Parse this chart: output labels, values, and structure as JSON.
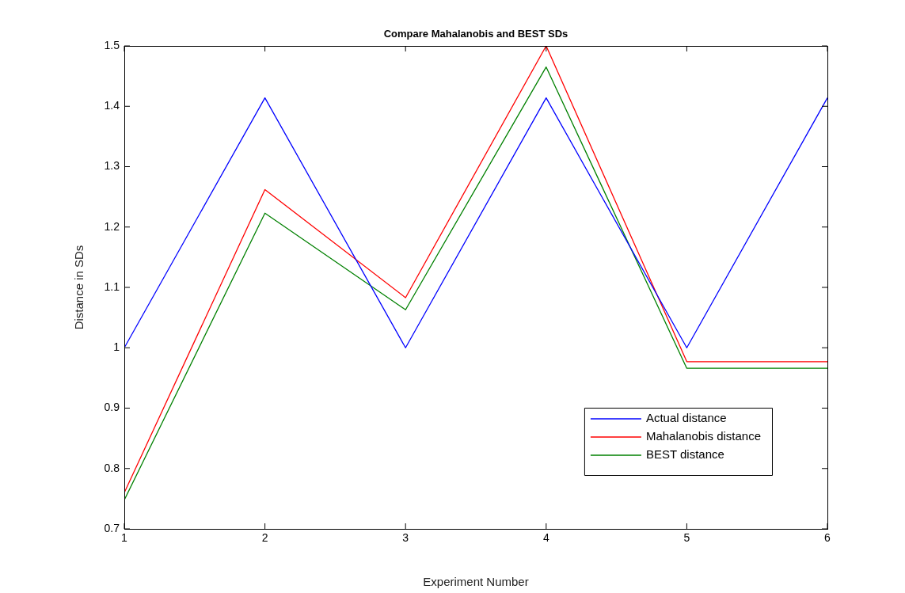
{
  "chart_data": {
    "type": "line",
    "title": "Compare Mahalanobis and BEST SDs",
    "xlabel": "Experiment Number",
    "ylabel": "Distance in SDs",
    "x": [
      1,
      2,
      3,
      4,
      5,
      6
    ],
    "series": [
      {
        "name": "Actual distance",
        "color": "#0000ff",
        "values": [
          1,
          1.414,
          1,
          1.414,
          1,
          1.414
        ]
      },
      {
        "name": "Mahalanobis distance",
        "color": "#ff0000",
        "values": [
          0.76,
          1.262,
          1.083,
          1.5,
          0.977,
          0.977
        ]
      },
      {
        "name": "BEST distance",
        "color": "#008000",
        "values": [
          0.748,
          1.223,
          1.063,
          1.465,
          0.966,
          0.966
        ]
      }
    ],
    "xlim": [
      1,
      6
    ],
    "xticks": [
      1,
      2,
      3,
      4,
      5,
      6
    ],
    "ylim": [
      0.7,
      1.5
    ],
    "yticks": [
      0.7,
      0.8,
      0.9,
      1,
      1.1,
      1.2,
      1.3,
      1.4,
      1.5
    ],
    "grid": false,
    "legend": "bottom right",
    "marker": "none",
    "line_style": "solid"
  }
}
